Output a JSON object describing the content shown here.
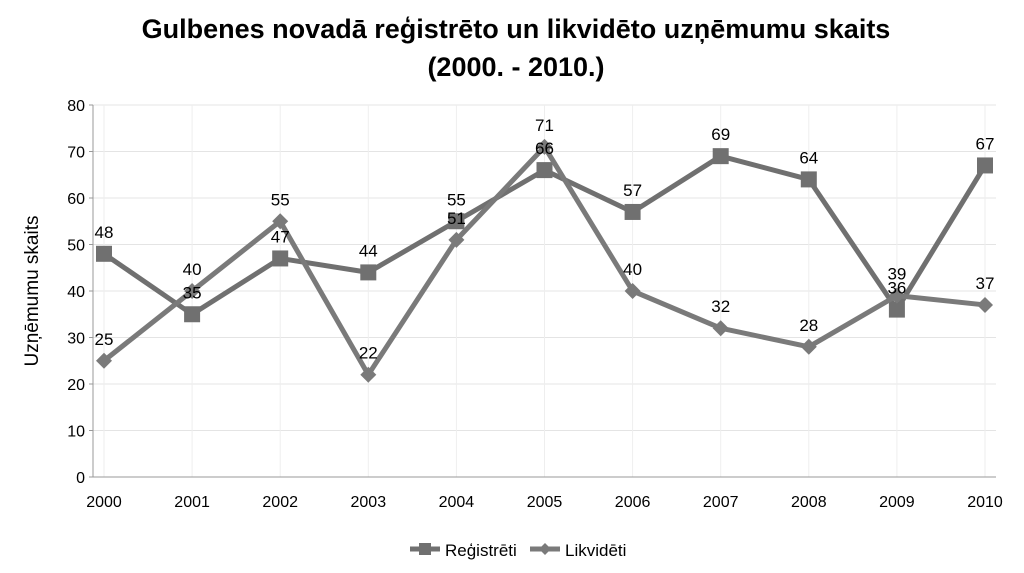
{
  "chart_data": {
    "type": "line",
    "title": [
      "Gulbenes novadā reģistrēto un likvidēto uzņēmumu skaits",
      "(2000. - 2010.)"
    ],
    "xlabel": "",
    "ylabel": "Uzņēmumu skaits",
    "ylim": [
      0,
      80
    ],
    "yticks": [
      0,
      10,
      20,
      30,
      40,
      50,
      60,
      70,
      80
    ],
    "grid": true,
    "legend": "bottom",
    "categories": [
      "2000",
      "2001",
      "2002",
      "2003",
      "2004",
      "2005",
      "2006",
      "2007",
      "2008",
      "2009",
      "2010"
    ],
    "series": [
      {
        "name": "Reģistrēti",
        "marker": "square",
        "color": "#707070",
        "values": [
          48,
          35,
          47,
          44,
          55,
          66,
          57,
          69,
          64,
          36,
          67
        ]
      },
      {
        "name": "Likvidēti",
        "marker": "diamond",
        "color": "#7a7a7a",
        "values": [
          25,
          40,
          55,
          22,
          51,
          71,
          40,
          32,
          28,
          39,
          37
        ]
      }
    ]
  }
}
